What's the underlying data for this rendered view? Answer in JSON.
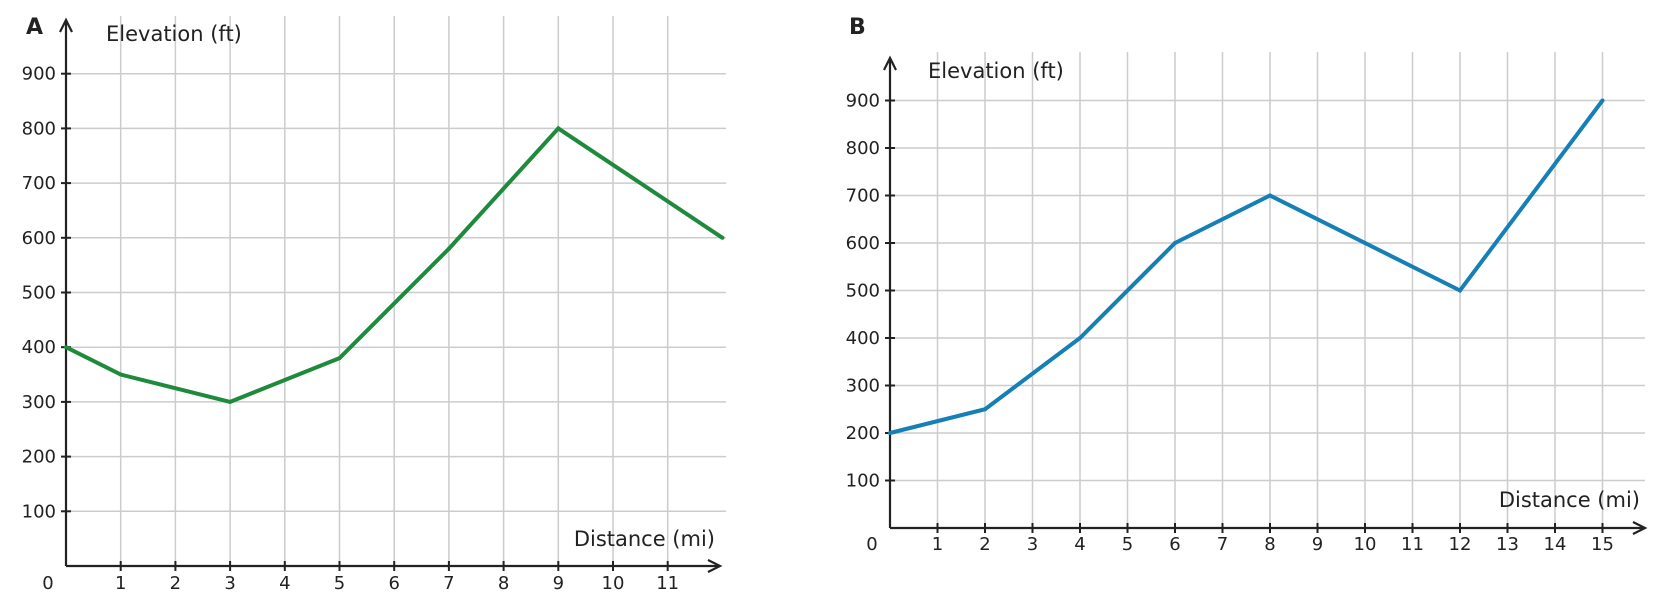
{
  "chart_data": [
    {
      "type": "line",
      "panel_label": "A",
      "xlabel": "Distance (mi)",
      "ylabel": "Elevation (ft)",
      "xlim": [
        0,
        12
      ],
      "ylim": [
        0,
        1000
      ],
      "x_ticks": [
        1,
        2,
        3,
        4,
        5,
        6,
        7,
        8,
        9,
        10,
        11
      ],
      "y_ticks": [
        100,
        200,
        300,
        400,
        500,
        600,
        700,
        800,
        900
      ],
      "origin_label": "0",
      "grid": true,
      "color": "#1e8a3c",
      "series": [
        {
          "x": [
            0,
            1,
            3,
            5,
            7,
            9,
            12
          ],
          "values": [
            400,
            350,
            300,
            380,
            580,
            800,
            600
          ]
        }
      ]
    },
    {
      "type": "line",
      "panel_label": "B",
      "xlabel": "Distance (mi)",
      "ylabel": "Elevation (ft)",
      "xlim": [
        0,
        16
      ],
      "ylim": [
        0,
        1000
      ],
      "x_ticks": [
        1,
        2,
        3,
        4,
        5,
        6,
        7,
        8,
        9,
        10,
        11,
        12,
        13,
        14,
        15
      ],
      "y_ticks": [
        100,
        200,
        300,
        400,
        500,
        600,
        700,
        800,
        900
      ],
      "origin_label": "0",
      "grid": true,
      "color": "#1580b5",
      "series": [
        {
          "x": [
            0,
            2,
            4,
            6,
            8,
            12,
            15
          ],
          "values": [
            200,
            250,
            400,
            600,
            700,
            500,
            900
          ]
        }
      ]
    }
  ]
}
